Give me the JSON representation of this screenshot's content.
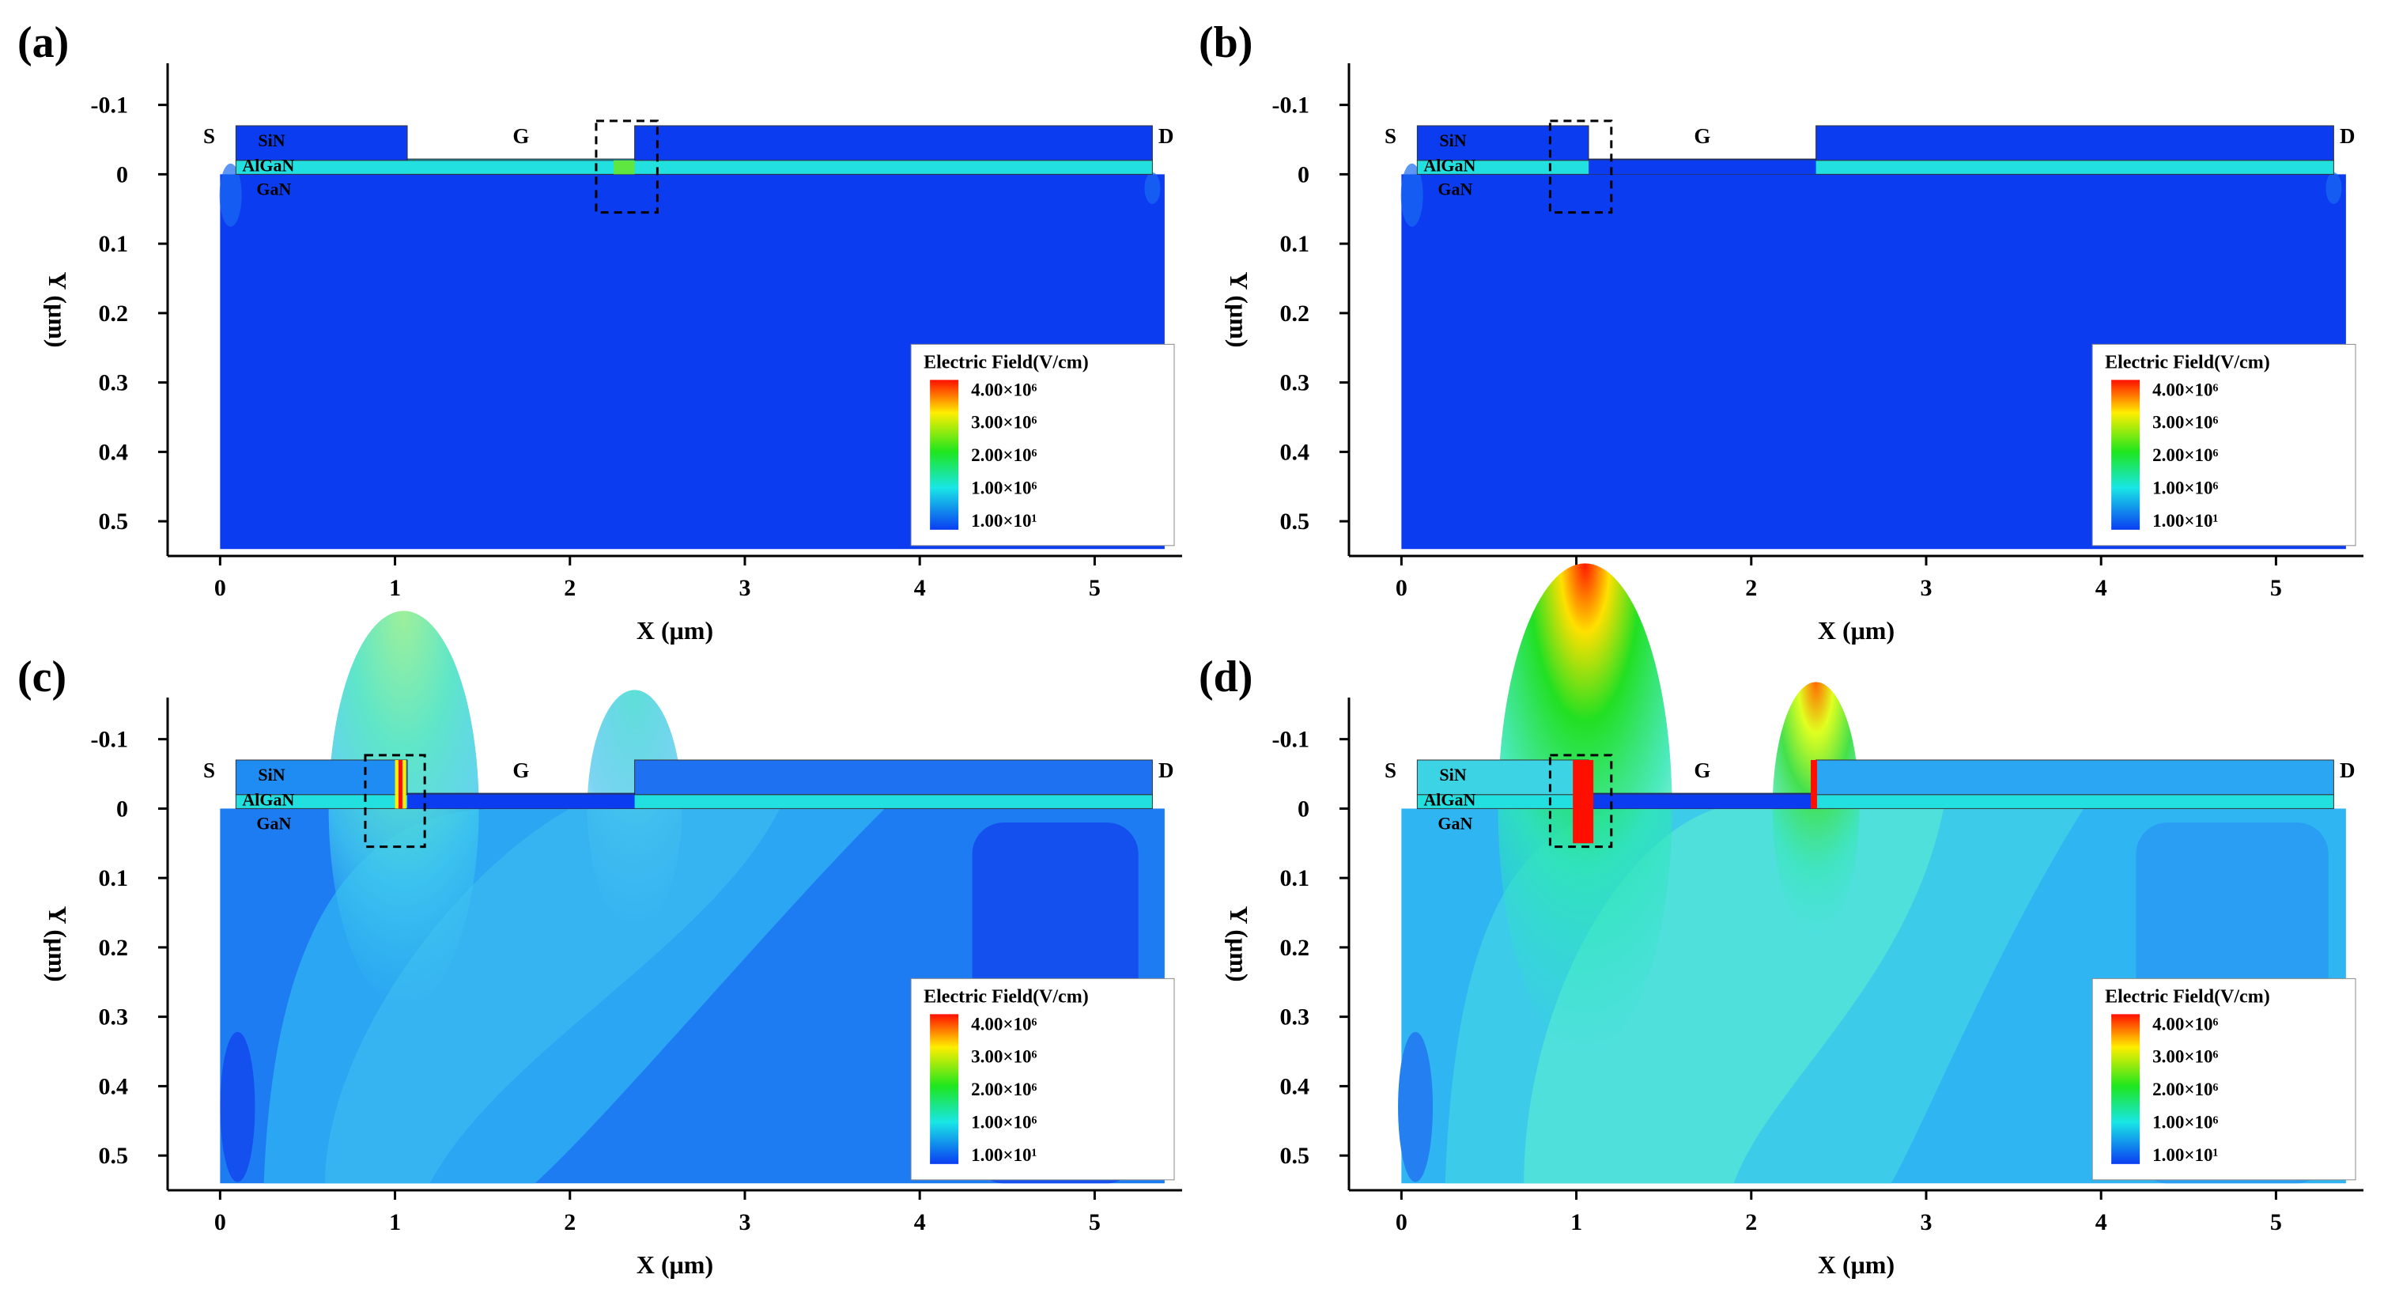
{
  "chart_data": [
    {
      "type": "heatmap",
      "panel_label": "(a)",
      "xlabel": "X (μm)",
      "ylabel": "Y (μm)",
      "xlim": [
        -0.3,
        5.5
      ],
      "ylim": [
        -0.16,
        0.55
      ],
      "y_inverted": true,
      "x_ticks": [
        "0",
        "1",
        "2",
        "3",
        "4",
        "5"
      ],
      "y_ticks": [
        "-0.1",
        "0",
        "0.1",
        "0.2",
        "0.3",
        "0.4",
        "0.5"
      ],
      "terminals": {
        "source": "S",
        "gate": "G",
        "drain": "D"
      },
      "layers": [
        "SiN",
        "AlGaN",
        "GaN"
      ],
      "gate_x_range": [
        1.07,
        2.37
      ],
      "highlight_region_x": [
        2.15,
        2.5
      ],
      "field_peaks": [],
      "colorbar": {
        "title": "Electric Field(V/cm)",
        "labels": [
          "4.00×10⁶",
          "3.00×10⁶",
          "2.00×10⁶",
          "1.00×10⁶",
          "1.00×10¹"
        ]
      }
    },
    {
      "type": "heatmap",
      "panel_label": "(b)",
      "xlabel": "X (μm)",
      "ylabel": "Y (μm)",
      "xlim": [
        -0.3,
        5.5
      ],
      "ylim": [
        -0.16,
        0.55
      ],
      "y_inverted": true,
      "x_ticks": [
        "0",
        "1",
        "2",
        "3",
        "4",
        "5"
      ],
      "y_ticks": [
        "-0.1",
        "0",
        "0.1",
        "0.2",
        "0.3",
        "0.4",
        "0.5"
      ],
      "terminals": {
        "source": "S",
        "gate": "G",
        "drain": "D"
      },
      "layers": [
        "SiN",
        "AlGaN",
        "GaN"
      ],
      "gate_x_range": [
        1.07,
        2.37
      ],
      "highlight_region_x": [
        0.85,
        1.2
      ],
      "field_peaks": [],
      "colorbar": {
        "title": "Electric Field(V/cm)",
        "labels": [
          "4.00×10⁶",
          "3.00×10⁶",
          "2.00×10⁶",
          "1.00×10⁶",
          "1.00×10¹"
        ]
      }
    },
    {
      "type": "heatmap",
      "panel_label": "(c)",
      "xlabel": "X (μm)",
      "ylabel": "Y (μm)",
      "xlim": [
        -0.3,
        5.5
      ],
      "ylim": [
        -0.16,
        0.55
      ],
      "y_inverted": true,
      "x_ticks": [
        "0",
        "1",
        "2",
        "3",
        "4",
        "5"
      ],
      "y_ticks": [
        "-0.1",
        "0",
        "0.1",
        "0.2",
        "0.3",
        "0.4",
        "0.5"
      ],
      "terminals": {
        "source": "S",
        "gate": "G",
        "drain": "D"
      },
      "layers": [
        "SiN",
        "AlGaN",
        "GaN"
      ],
      "gate_x_range": [
        1.07,
        2.37
      ],
      "highlight_region_x": [
        0.83,
        1.17
      ],
      "field_peaks": [
        {
          "x": 1.05,
          "y": 0.0,
          "peak_field": 2000000
        },
        {
          "x": 2.37,
          "y": 0.0,
          "peak_field": 1000000
        }
      ],
      "colorbar": {
        "title": "Electric Field(V/cm)",
        "labels": [
          "4.00×10⁶",
          "3.00×10⁶",
          "2.00×10⁶",
          "1.00×10⁶",
          "1.00×10¹"
        ]
      }
    },
    {
      "type": "heatmap",
      "panel_label": "(d)",
      "xlabel": "X (μm)",
      "ylabel": "Y (μm)",
      "xlim": [
        -0.3,
        5.5
      ],
      "ylim": [
        -0.16,
        0.55
      ],
      "y_inverted": true,
      "x_ticks": [
        "0",
        "1",
        "2",
        "3",
        "4",
        "5"
      ],
      "y_ticks": [
        "-0.1",
        "0",
        "0.1",
        "0.2",
        "0.3",
        "0.4",
        "0.5"
      ],
      "terminals": {
        "source": "S",
        "gate": "G",
        "drain": "D"
      },
      "layers": [
        "SiN",
        "AlGaN",
        "GaN"
      ],
      "gate_x_range": [
        1.07,
        2.37
      ],
      "highlight_region_x": [
        0.85,
        1.2
      ],
      "field_peaks": [
        {
          "x": 1.05,
          "y": 0.0,
          "peak_field": 4000000
        },
        {
          "x": 2.37,
          "y": 0.0,
          "peak_field": 3000000
        }
      ],
      "colorbar": {
        "title": "Electric Field(V/cm)",
        "labels": [
          "4.00×10⁶",
          "3.00×10⁶",
          "2.00×10⁶",
          "1.00×10⁶",
          "1.00×10¹"
        ]
      }
    }
  ],
  "colors": {
    "low": "#0a3df2",
    "cyan": "#19e6e6",
    "green": "#1ee61e",
    "yellow": "#ffee00",
    "red": "#ff0f00"
  }
}
